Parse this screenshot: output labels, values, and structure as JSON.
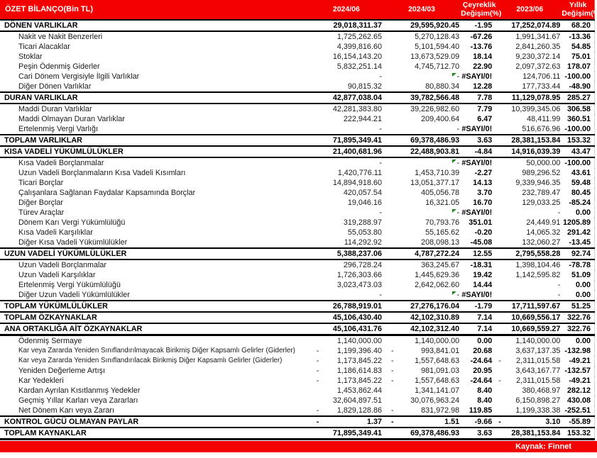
{
  "title": "ÖZET BİLANÇO(Bin TL)",
  "columns": [
    "2024/06",
    "2024/03",
    "Çeyreklik Değişim(%)",
    "2023/06",
    "Yıllık Değişim(%)"
  ],
  "footer": {
    "source_label": "Kaynak: Finnet"
  },
  "colors": {
    "header_red": "#f30000",
    "flag_green": "#1e8a1e",
    "text_black": "#000000"
  },
  "error_value": "#SAYI/0!",
  "rows": [
    {
      "label": "DÖNEN VARLIKLAR",
      "section": true,
      "cells": [
        "29,018,311.37",
        "29,595,920.45",
        "-1.95",
        "17,252,074.89",
        "68.20"
      ]
    },
    {
      "label": "Nakit ve Nakit Benzerleri",
      "section": false,
      "cells": [
        "1,725,262.65",
        "5,270,128.43",
        "-67.26",
        "1,991,341.67",
        "-13.36"
      ]
    },
    {
      "label": "Ticari Alacaklar",
      "section": false,
      "cells": [
        "4,399,816.60",
        "5,101,594.40",
        "-13.76",
        "2,841,260.35",
        "54.85"
      ]
    },
    {
      "label": "Stoklar",
      "section": false,
      "cells": [
        "16,154,143.20",
        "13,673,529.09",
        "18.14",
        "9,230,372.14",
        "75.01"
      ]
    },
    {
      "label": "Peşin Ödenmiş Giderler",
      "section": false,
      "cells": [
        "5,832,251.14",
        "4,745,712.70",
        "22.90",
        "2,097,372.63",
        "178.07"
      ]
    },
    {
      "label": "Cari Dönem Vergisiyle İlgili Varlıklar",
      "section": false,
      "flag": true,
      "cells": [
        "-",
        "-",
        "#SAYI/0!",
        "124,706.11",
        "-100.00"
      ]
    },
    {
      "label": "Diğer Dönen Varlıklar",
      "section": false,
      "cells": [
        "90,815.32",
        "80,880.34",
        "12.28",
        "177,733.44",
        "-48.90"
      ]
    },
    {
      "label": "DURAN VARLIKLAR",
      "section": true,
      "cells": [
        "42,877,038.04",
        "39,782,566.48",
        "7.78",
        "11,129,078.95",
        "285.27"
      ]
    },
    {
      "label": "Maddi Duran Varlıklar",
      "section": false,
      "cells": [
        "42,281,383.80",
        "39,226,982.60",
        "7.79",
        "10,399,345.06",
        "306.58"
      ]
    },
    {
      "label": "Maddi Olmayan Duran Varlıklar",
      "section": false,
      "cells": [
        "222,944.21",
        "209,400.64",
        "6.47",
        "48,411.99",
        "360.51"
      ]
    },
    {
      "label": "Ertelenmiş Vergi Varlığı",
      "section": false,
      "cells": [
        "-",
        "-",
        "#SAYI/0!",
        "516,676.96",
        "-100.00"
      ]
    },
    {
      "label": "TOPLAM VARLIKLAR",
      "section": true,
      "cells": [
        "71,895,349.41",
        "69,378,486.93",
        "3.63",
        "28,381,153.84",
        "153.32"
      ]
    },
    {
      "label": "KISA VADELİ YÜKÜMLÜLÜKLER",
      "section": true,
      "cells": [
        "21,400,681.96",
        "22,488,903.81",
        "-4.84",
        "14,916,039.39",
        "43.47"
      ]
    },
    {
      "label": "Kısa Vadeli Borçlanmalar",
      "section": false,
      "flag": true,
      "cells": [
        "-",
        "-",
        "#SAYI/0!",
        "50,000.00",
        "-100.00"
      ]
    },
    {
      "label": "Uzun Vadeli Borçlanmaların Kısa Vadeli Kısımları",
      "section": false,
      "cells": [
        "1,420,776.11",
        "1,453,710.39",
        "-2.27",
        "989,296.52",
        "43.61"
      ]
    },
    {
      "label": "Ticari Borçlar",
      "section": false,
      "cells": [
        "14,894,918.60",
        "13,051,377.17",
        "14.13",
        "9,339,946.35",
        "59.48"
      ]
    },
    {
      "label": "Çalışanlara Sağlanan Faydalar Kapsamında Borçlar",
      "section": false,
      "cells": [
        "420,057.54",
        "405,056.78",
        "3.70",
        "232,789.47",
        "80.45"
      ]
    },
    {
      "label": "Diğer Borçlar",
      "section": false,
      "cells": [
        "19,046.16",
        "16,321.05",
        "16.70",
        "129,033.25",
        "-85.24"
      ]
    },
    {
      "label": "Türev Araçlar",
      "section": false,
      "flag": true,
      "cells": [
        "-",
        "-",
        "#SAYI/0!",
        "-",
        "0.00"
      ]
    },
    {
      "label": "Dönem Karı Vergi Yükümlülüğü",
      "section": false,
      "cells": [
        "319,288.97",
        "70,793.76",
        "351.01",
        "24,449.91",
        "1205.89"
      ]
    },
    {
      "label": "Kısa Vadeli Karşılıklar",
      "section": false,
      "cells": [
        "55,053.80",
        "55,165.62",
        "-0.20",
        "14,065.32",
        "291.42"
      ]
    },
    {
      "label": "Diğer Kısa Vadeli Yükümlülükler",
      "section": false,
      "cells": [
        "114,292.92",
        "208,098.13",
        "-45.08",
        "132,060.27",
        "-13.45"
      ]
    },
    {
      "label": "UZUN VADELİ YÜKÜMLÜLÜKLER",
      "section": true,
      "cells": [
        "5,388,237.06",
        "4,787,272.24",
        "12.55",
        "2,795,558.28",
        "92.74"
      ]
    },
    {
      "label": "Uzun Vadeli Borçlanmalar",
      "section": false,
      "cells": [
        "296,728.24",
        "363,245.67",
        "-18.31",
        "1,398,104.46",
        "-78.78"
      ]
    },
    {
      "label": "Uzun Vadeli Karşılıklar",
      "section": false,
      "cells": [
        "1,726,303.66",
        "1,445,629.36",
        "19.42",
        "1,142,595.82",
        "51.09"
      ]
    },
    {
      "label": "Ertelenmiş Vergi Yükümlülüğü",
      "section": false,
      "cells": [
        "3,023,473.03",
        "2,642,062.60",
        "14.44",
        "-",
        "0.00"
      ]
    },
    {
      "label": "Diğer Uzun Vadeli Yükümlülükler",
      "section": false,
      "flag": true,
      "cells": [
        "-",
        "-",
        "#SAYI/0!",
        "-",
        "0.00"
      ]
    },
    {
      "label": "TOPLAM YÜKÜMLÜLÜKLER",
      "section": true,
      "cells": [
        "26,788,919.01",
        "27,276,176.04",
        "-1.79",
        "17,711,597.67",
        "51.25"
      ]
    },
    {
      "label": "TOPLAM ÖZKAYNAKLAR",
      "section": true,
      "cells": [
        "45,106,430.40",
        "42,102,310.89",
        "7.14",
        "10,669,556.17",
        "322.76"
      ]
    },
    {
      "label": "ANA ORTAKLIĞA AİT ÖZKAYNAKLAR",
      "section": true,
      "thick": true,
      "cells": [
        "45,106,431.76",
        "42,102,312.40",
        "7.14",
        "10,669,559.27",
        "322.76"
      ]
    },
    {
      "label": "Ödenmiş Sermaye",
      "section": false,
      "cells": [
        "1,140,000.00",
        "1,140,000.00",
        "0.00",
        "1,140,000.00",
        "0.00"
      ]
    },
    {
      "label": "Kar veya Zararda Yeniden Sınıflandırılmayacak Birikmiş Diğer Kapsamlı Gelirler (Giderler)",
      "section": false,
      "neg": [
        0,
        1
      ],
      "cells": [
        "1,199,396.40",
        "993,841.01",
        "20.68",
        "3,637,137.35",
        "-132.98"
      ]
    },
    {
      "label": "Kar veya Zararda Yeniden Sınıflandırılacak Birikmiş Diğer Kapsamlı Gelirler (Giderler)",
      "section": false,
      "neg": [
        0,
        1,
        3
      ],
      "cells": [
        "1,173,845.22",
        "1,557,648.63",
        "-24.64",
        "2,311,015.58",
        "-49.21"
      ]
    },
    {
      "label": "Yeniden Değerleme Artışı",
      "section": false,
      "neg": [
        0,
        1
      ],
      "cells": [
        "1,186,614.83",
        "981,091.03",
        "20.95",
        "3,643,167.77",
        "-132.57"
      ]
    },
    {
      "label": "Kar Yedekleri",
      "section": false,
      "neg": [
        0,
        1,
        3
      ],
      "cells": [
        "1,173,845.22",
        "1,557,648.63",
        "-24.64",
        "2,311,015.58",
        "-49.21"
      ]
    },
    {
      "label": "Kardan Ayrılan Kısıtlanmış Yedekler",
      "section": false,
      "cells": [
        "1,453,862.44",
        "1,341,141.07",
        "8.40",
        "380,468.97",
        "282.12"
      ]
    },
    {
      "label": "Geçmiş Yıllar Karları veya Zararları",
      "section": false,
      "cells": [
        "32,604,897.51",
        "30,076,963.24",
        "8.40",
        "6,150,898.27",
        "430.08"
      ]
    },
    {
      "label": "Net Dönem Karı veya Zararı",
      "section": false,
      "neg": [
        0,
        1
      ],
      "cells": [
        "1,829,128.86",
        "831,972.98",
        "119.85",
        "1,199,338.38",
        "-252.51"
      ]
    },
    {
      "label": "KONTROL GÜCÜ OLMAYAN PAYLAR",
      "section": true,
      "neg": [
        0,
        1,
        3
      ],
      "cells": [
        "1.37",
        "1.51",
        "-9.66",
        "3.10",
        "-55.89"
      ]
    },
    {
      "label": "TOPLAM KAYNAKLAR",
      "section": true,
      "thick": true,
      "cells": [
        "71,895,349.41",
        "69,378,486.93",
        "3.63",
        "28,381,153.84",
        "153.32"
      ]
    }
  ]
}
